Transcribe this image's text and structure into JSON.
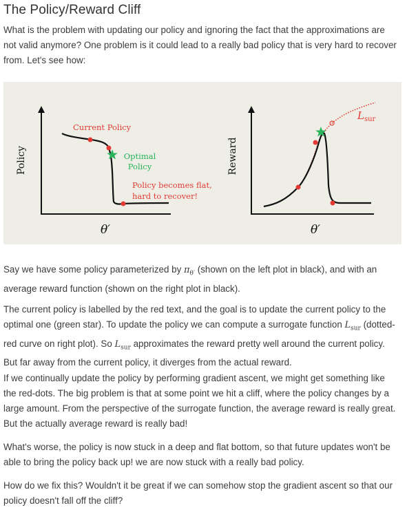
{
  "heading": "The Policy/Reward Cliff",
  "intro": "What is the problem with updating our policy and ignoring the fact that the approximations are not valid anymore? One problem is it could lead to a really bad policy that is very hard to recover from. Let's see how:",
  "figure": {
    "left_plot": {
      "ylabel": "Policy",
      "xlabel": "θ′",
      "current_policy_label": "Current Policy",
      "optimal_label_line1": "Optimal",
      "optimal_label_line2": "Policy",
      "flat_label_line1": "Policy becomes flat,",
      "flat_label_line2": "hard to recover!"
    },
    "right_plot": {
      "ylabel": "Reward",
      "xlabel": "θ′",
      "surrogate_label": "L",
      "surrogate_sub": "sur"
    },
    "colors": {
      "curve": "#111111",
      "red": "#e23b33",
      "green": "#29b35a",
      "background": "#eeeee7"
    }
  },
  "paragraphs": {
    "p1_a": "Say we have some policy parameterized by ",
    "p1_math": "π",
    "p1_math_sub": "θ′",
    "p1_b": " (shown on the left plot in black), and with an average reward function (shown on the right plot in black).",
    "p2_a": "The current policy is labelled by the red text, and the goal is to update the current policy to the optimal one (green star). To update the policy we can compute a surrogate function ",
    "p2_math": "L",
    "p2_math_sub": "sur",
    "p2_b": " (dotted-red curve on right plot). So ",
    "p2_c": " approximates the reward pretty well around the current policy. But far away from the current policy, it diverges from the actual reward.",
    "p3": "If we continually update the policy by performing gradient ascent, we might get something like the red-dots. The big problem is that at some point we hit a cliff, where the policy changes by a large amount. From the perspective of the surrogate function, the average reward is really great. But the actually average reward is really bad!",
    "p4": "What's worse, the policy is now stuck in a deep and flat bottom, so that future updates won't be able to bring the policy back up! we are now stuck with a really bad policy.",
    "p5": "How do we fix this? Wouldn't it be great if we can somehow stop the gradient ascent so that our policy doesn't fall off the cliff?"
  }
}
